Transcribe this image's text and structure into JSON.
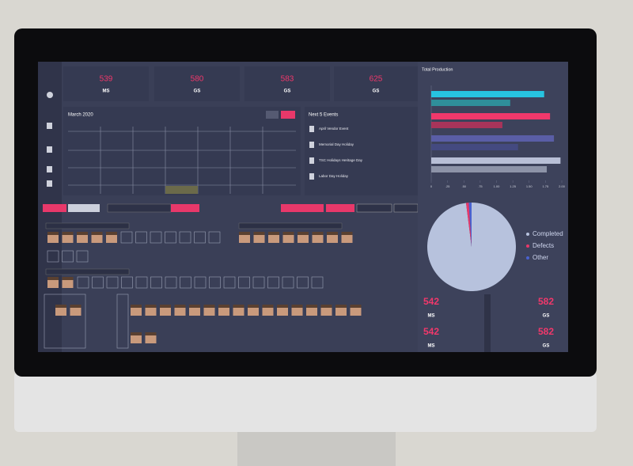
{
  "stats": [
    {
      "value": "539",
      "label": "MS"
    },
    {
      "value": "580",
      "label": "GS"
    },
    {
      "value": "583",
      "label": "GS"
    },
    {
      "value": "625",
      "label": "GS"
    }
  ],
  "calendar": {
    "title": "March 2020"
  },
  "events": {
    "title": "Next 5 Events",
    "items": [
      "April Vendor Event",
      "Memorial Day Holiday",
      "TSC Holidays Heritage Day",
      "Labor Day Holiday"
    ]
  },
  "production": {
    "title": "Total Production",
    "xlim": [
      0,
      2
    ],
    "xticks": [
      0,
      {
        "value": 0.25,
        "label": ".25"
      },
      {
        "value": 0.5,
        "label": ".50"
      },
      {
        "value": 0.75,
        "label": ".75"
      },
      {
        "value": 1,
        "label": "1.00"
      },
      {
        "value": 1.25,
        "label": "1.25"
      },
      {
        "value": 1.5,
        "label": "1.50"
      },
      {
        "value": 1.75,
        "label": "1.75"
      },
      {
        "value": 2,
        "label": "2.00"
      }
    ],
    "bars": [
      {
        "color": "#27c3e0",
        "value": 1.73
      },
      {
        "color": "#2f8f9a",
        "value": 1.21
      },
      {
        "color": "#f0386b",
        "value": 1.82
      },
      {
        "color": "#a8345a",
        "value": 1.09
      },
      {
        "color": "#5a5ea6",
        "value": 1.88
      },
      {
        "color": "#444a80",
        "value": 1.33
      },
      {
        "color": "#b8bfd6",
        "value": 1.98
      },
      {
        "color": "#8d93a8",
        "value": 1.77
      }
    ]
  },
  "pie": {
    "series": [
      {
        "name": "Completed",
        "color": "#b7c2dd",
        "value": 98
      },
      {
        "name": "Defects",
        "color": "#e8386a",
        "value": 1
      },
      {
        "name": "Other",
        "color": "#4a62d0",
        "value": 1
      }
    ]
  },
  "bottom_stats": [
    {
      "value": "542",
      "label": "MS"
    },
    {
      "value": "582",
      "label": "GS"
    },
    {
      "value": "542",
      "label": "MS"
    },
    {
      "value": "582",
      "label": "GS"
    }
  ]
}
